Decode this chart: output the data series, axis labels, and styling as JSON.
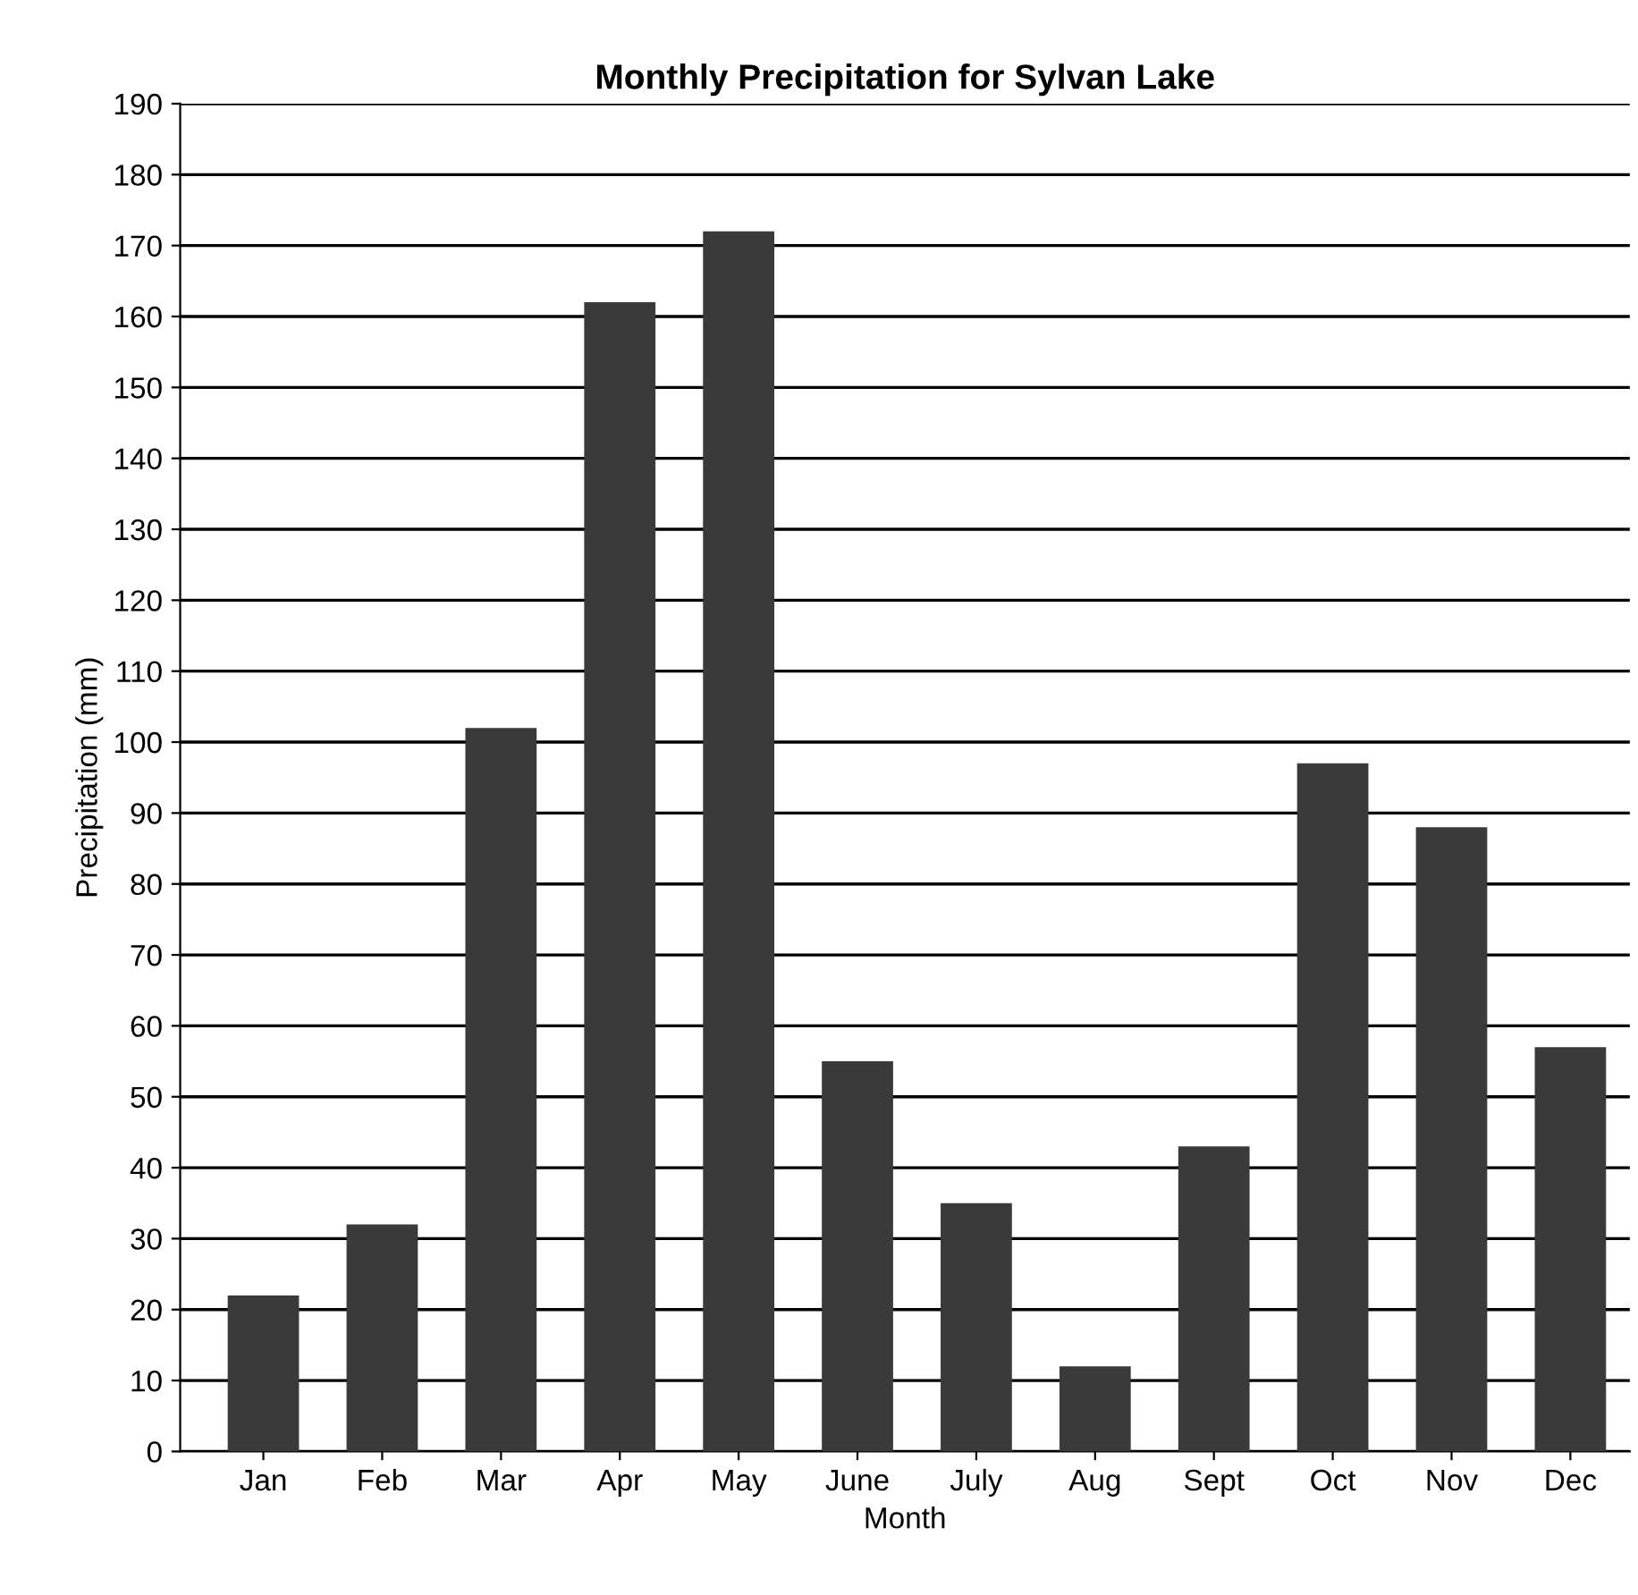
{
  "chart_data": {
    "type": "bar",
    "title": "Monthly Precipitation for Sylvan Lake",
    "xlabel": "Month",
    "ylabel": "Precipitation (mm)",
    "categories": [
      "Jan",
      "Feb",
      "Mar",
      "Apr",
      "May",
      "June",
      "July",
      "Aug",
      "Sept",
      "Oct",
      "Nov",
      "Dec"
    ],
    "values": [
      22,
      32,
      102,
      162,
      172,
      55,
      35,
      12,
      43,
      97,
      88,
      57
    ],
    "color": "#3a3a3a",
    "ylim": [
      0,
      190
    ],
    "yticks": [
      0,
      10,
      20,
      30,
      40,
      50,
      60,
      70,
      80,
      90,
      100,
      110,
      120,
      130,
      140,
      150,
      160,
      170,
      180,
      190
    ],
    "grid": "y"
  }
}
